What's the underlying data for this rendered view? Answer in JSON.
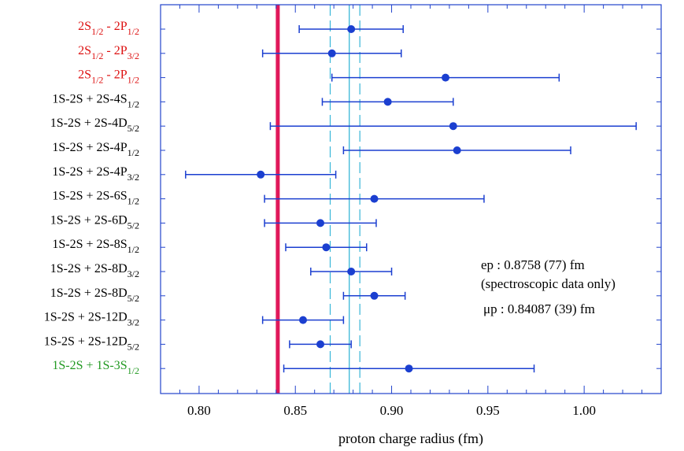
{
  "chart_data": {
    "type": "scatter",
    "title": "",
    "xlabel": "proton charge radius (fm)",
    "ylabel": "",
    "xlim": [
      0.78,
      1.04
    ],
    "xticks": [
      "0.80",
      "0.85",
      "0.90",
      "0.95",
      "1.00"
    ],
    "grid": false,
    "colors": {
      "points": "#1b3fd0",
      "frame": "#2244cc",
      "muonic_line": "#e0185a",
      "cyan_lines": "#38b6d8",
      "label_red": "#dd1111",
      "label_black": "#000000",
      "label_green": "#229922"
    },
    "measurements": [
      {
        "label": {
          "base": "2S",
          "sub": "1/2",
          "rest": " - 2P",
          "sub2": "1/2"
        },
        "color": "red",
        "value": 0.879,
        "err_low": 0.852,
        "err_high": 0.906
      },
      {
        "label": {
          "base": "2S",
          "sub": "1/2",
          "rest": " - 2P",
          "sub2": "3/2"
        },
        "color": "red",
        "value": 0.869,
        "err_low": 0.833,
        "err_high": 0.905
      },
      {
        "label": {
          "base": "2S",
          "sub": "1/2",
          "rest": " - 2P",
          "sub2": "1/2"
        },
        "color": "red",
        "value": 0.928,
        "err_low": 0.869,
        "err_high": 0.987
      },
      {
        "label": {
          "base": "1S-2S  +  2S-4S",
          "sub": "1/2"
        },
        "color": "black",
        "value": 0.898,
        "err_low": 0.864,
        "err_high": 0.932
      },
      {
        "label": {
          "base": "1S-2S  +  2S-4D",
          "sub": "5/2"
        },
        "color": "black",
        "value": 0.932,
        "err_low": 0.837,
        "err_high": 1.027
      },
      {
        "label": {
          "base": "1S-2S  +  2S-4P",
          "sub": "1/2"
        },
        "color": "black",
        "value": 0.934,
        "err_low": 0.875,
        "err_high": 0.993
      },
      {
        "label": {
          "base": "1S-2S  +  2S-4P",
          "sub": "3/2"
        },
        "color": "black",
        "value": 0.832,
        "err_low": 0.793,
        "err_high": 0.871
      },
      {
        "label": {
          "base": "1S-2S  +  2S-6S",
          "sub": "1/2"
        },
        "color": "black",
        "value": 0.891,
        "err_low": 0.834,
        "err_high": 0.948
      },
      {
        "label": {
          "base": "1S-2S  +  2S-6D",
          "sub": "5/2"
        },
        "color": "black",
        "value": 0.863,
        "err_low": 0.834,
        "err_high": 0.892
      },
      {
        "label": {
          "base": "1S-2S  +  2S-8S",
          "sub": "1/2"
        },
        "color": "black",
        "value": 0.866,
        "err_low": 0.845,
        "err_high": 0.887
      },
      {
        "label": {
          "base": "1S-2S  +  2S-8D",
          "sub": "3/2"
        },
        "color": "black",
        "value": 0.879,
        "err_low": 0.858,
        "err_high": 0.9
      },
      {
        "label": {
          "base": "1S-2S  +  2S-8D",
          "sub": "5/2"
        },
        "color": "black",
        "value": 0.891,
        "err_low": 0.875,
        "err_high": 0.907
      },
      {
        "label": {
          "base": "1S-2S  +  2S-12D",
          "sub": "3/2"
        },
        "color": "black",
        "value": 0.854,
        "err_low": 0.833,
        "err_high": 0.875
      },
      {
        "label": {
          "base": "1S-2S  +  2S-12D",
          "sub": "5/2"
        },
        "color": "black",
        "value": 0.863,
        "err_low": 0.847,
        "err_high": 0.879
      },
      {
        "label": {
          "base": "1S-2S  +  1S-3S",
          "sub": "1/2"
        },
        "color": "green",
        "value": 0.909,
        "err_low": 0.844,
        "err_high": 0.974
      }
    ],
    "reference_lines": {
      "muonic_proton": 0.84087,
      "electronic_proton": 0.8758,
      "electronic_proton_band": [
        0.8681,
        0.8835
      ],
      "aux_line": 0.878,
      "aux_band": [
        0.869,
        0.887
      ]
    },
    "annotations": {
      "ep_line1": "ep : 0.8758 (77) fm",
      "ep_line2": "(spectroscopic data only)",
      "mu_line": "μp : 0.84087 (39) fm"
    }
  }
}
